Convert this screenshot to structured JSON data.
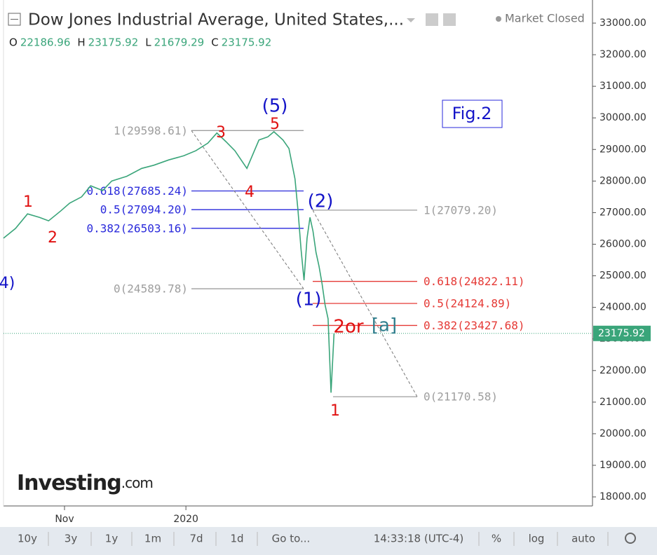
{
  "chart_data": {
    "type": "line",
    "title": "Dow Jones Industrial Average, United States,...",
    "status": "Market Closed",
    "ohlc": [
      {
        "key": "O",
        "value": 22186.96
      },
      {
        "key": "H",
        "value": 23175.92
      },
      {
        "key": "L",
        "value": 21679.29
      },
      {
        "key": "C",
        "value": 23175.92
      }
    ],
    "series": [
      {
        "name": "Dow Jones Industrial Average",
        "color": "#3aa57a",
        "x": [
          0,
          4,
          8,
          12,
          15,
          19,
          22,
          26,
          29,
          33,
          36,
          41,
          46,
          50,
          55,
          60,
          64,
          68,
          71,
          74,
          77,
          81,
          85,
          88,
          90,
          93,
          95,
          97,
          98,
          99,
          100,
          101,
          102,
          103,
          104,
          105,
          106,
          107,
          108,
          109,
          110
        ],
        "values": [
          26190,
          26500,
          26960,
          26850,
          26740,
          27050,
          27300,
          27500,
          27850,
          27700,
          28000,
          28150,
          28400,
          28500,
          28670,
          28800,
          28960,
          29200,
          29520,
          29250,
          28960,
          28400,
          29300,
          29400,
          29560,
          29300,
          29030,
          28070,
          27070,
          25850,
          24860,
          26190,
          26850,
          26410,
          25740,
          25300,
          24750,
          24080,
          23640,
          21300,
          23175.92
        ]
      }
    ],
    "last_price": {
      "value": 23175.92,
      "label": "23175.92"
    },
    "xlim": [
      0,
      196
    ],
    "xticks": [
      {
        "value": 20.3,
        "label": "Nov"
      },
      {
        "value": 60.7,
        "label": "2020"
      }
    ],
    "ylim": [
      17713,
      33732
    ],
    "yticks": [
      {
        "value": 18000,
        "label": "18000.00"
      },
      {
        "value": 19000,
        "label": "19000.00"
      },
      {
        "value": 20000,
        "label": "20000.00"
      },
      {
        "value": 21000,
        "label": "21000.00"
      },
      {
        "value": 22000,
        "label": "22000.00"
      },
      {
        "value": 23000,
        "label": "23000.00"
      },
      {
        "value": 24000,
        "label": "24000.00"
      },
      {
        "value": 25000,
        "label": "25000.00"
      },
      {
        "value": 26000,
        "label": "26000.00"
      },
      {
        "value": 27000,
        "label": "27000.00"
      },
      {
        "value": 28000,
        "label": "28000.00"
      },
      {
        "value": 29000,
        "label": "29000.00"
      },
      {
        "value": 30000,
        "label": "30000.00"
      },
      {
        "value": 31000,
        "label": "31000.00"
      },
      {
        "value": 32000,
        "label": "32000.00"
      },
      {
        "value": 33000,
        "label": "33000.00"
      }
    ],
    "fib_levels": [
      {
        "label": "1(29598.61)",
        "value": 29598.61,
        "color": "#9e9e9e",
        "set": 0
      },
      {
        "label": "0.618(27685.24)",
        "value": 27685.24,
        "color": "#2a2adb",
        "set": 0
      },
      {
        "label": "0.5(27094.20)",
        "value": 27094.2,
        "color": "#2a2adb",
        "set": 0
      },
      {
        "label": "0.382(26503.16)",
        "value": 26503.16,
        "color": "#2a2adb",
        "set": 0
      },
      {
        "label": "0(24589.78)",
        "value": 24589.78,
        "color": "#9e9e9e",
        "set": 0
      },
      {
        "label": "1(27079.20)",
        "value": 27079.2,
        "color": "#9e9e9e",
        "set": 1
      },
      {
        "label": "0.618(24822.11)",
        "value": 24822.11,
        "color": "#e53935",
        "set": 1
      },
      {
        "label": "0.5(24124.89)",
        "value": 24124.89,
        "color": "#e53935",
        "set": 1
      },
      {
        "label": "0.382(23427.68)",
        "value": 23427.68,
        "color": "#e53935",
        "set": 1
      },
      {
        "label": "0(21170.58)",
        "value": 21170.58,
        "color": "#9e9e9e",
        "set": 1
      }
    ],
    "wave_labels": [
      {
        "text": "1",
        "color": "#e01010"
      },
      {
        "text": "2",
        "color": "#e01010"
      },
      {
        "text": "3",
        "color": "#e01010"
      },
      {
        "text": "4",
        "color": "#e01010"
      },
      {
        "text": "5",
        "color": "#e01010"
      },
      {
        "text": "(5)",
        "color": "#1414c8"
      },
      {
        "text": "(2)",
        "color": "#1414c8"
      },
      {
        "text": "(1)",
        "color": "#1414c8"
      },
      {
        "text": "2or",
        "color": "#e01010"
      },
      {
        "text": "[a]",
        "color": "#2e7d8c"
      },
      {
        "text": "1",
        "color": "#e01010"
      },
      {
        "text": "4)",
        "color": "#1414c8"
      }
    ],
    "figure_label": "Fig.2",
    "brand": "Investing",
    "brand_suffix": ".com",
    "toolbar": [
      "10y",
      "3y",
      "1y",
      "1m",
      "7d",
      "1d",
      "Go to...",
      "14:33:18 (UTC-4)",
      "%",
      "log",
      "auto"
    ]
  }
}
